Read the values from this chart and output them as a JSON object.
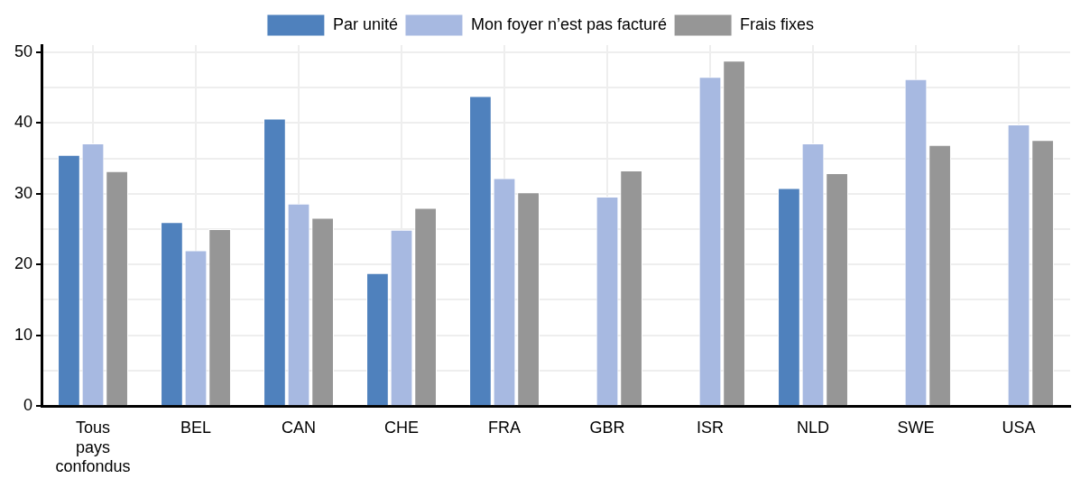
{
  "chart_data": {
    "type": "bar",
    "categories": [
      "Tous pays confondus",
      "BEL",
      "CAN",
      "CHE",
      "FRA",
      "GBR",
      "ISR",
      "NLD",
      "SWE",
      "USA"
    ],
    "series": [
      {
        "name": "Par unité",
        "color": "#4f81bd",
        "values": [
          35.5,
          26.0,
          40.6,
          18.8,
          43.8,
          null,
          null,
          30.8,
          null,
          null
        ]
      },
      {
        "name": "Mon foyer n’est pas facturé",
        "color": "#a7b9e1",
        "values": [
          37.1,
          22.0,
          28.6,
          24.9,
          32.2,
          29.6,
          46.5,
          37.1,
          46.2,
          39.8
        ]
      },
      {
        "name": "Frais fixes",
        "color": "#969696",
        "values": [
          33.2,
          25.0,
          26.6,
          28.0,
          30.2,
          33.3,
          48.8,
          32.9,
          36.9,
          37.6
        ]
      }
    ],
    "ylim": [
      0,
      51
    ],
    "yticks": [
      0,
      {
        "value": 5,
        "label": null
      },
      10,
      {
        "value": 15,
        "label": null
      },
      20,
      {
        "value": 25,
        "label": null
      },
      30,
      {
        "value": 35,
        "label": null
      },
      40,
      {
        "value": 45,
        "label": null
      },
      50
    ],
    "grid": true,
    "legend": "top"
  }
}
